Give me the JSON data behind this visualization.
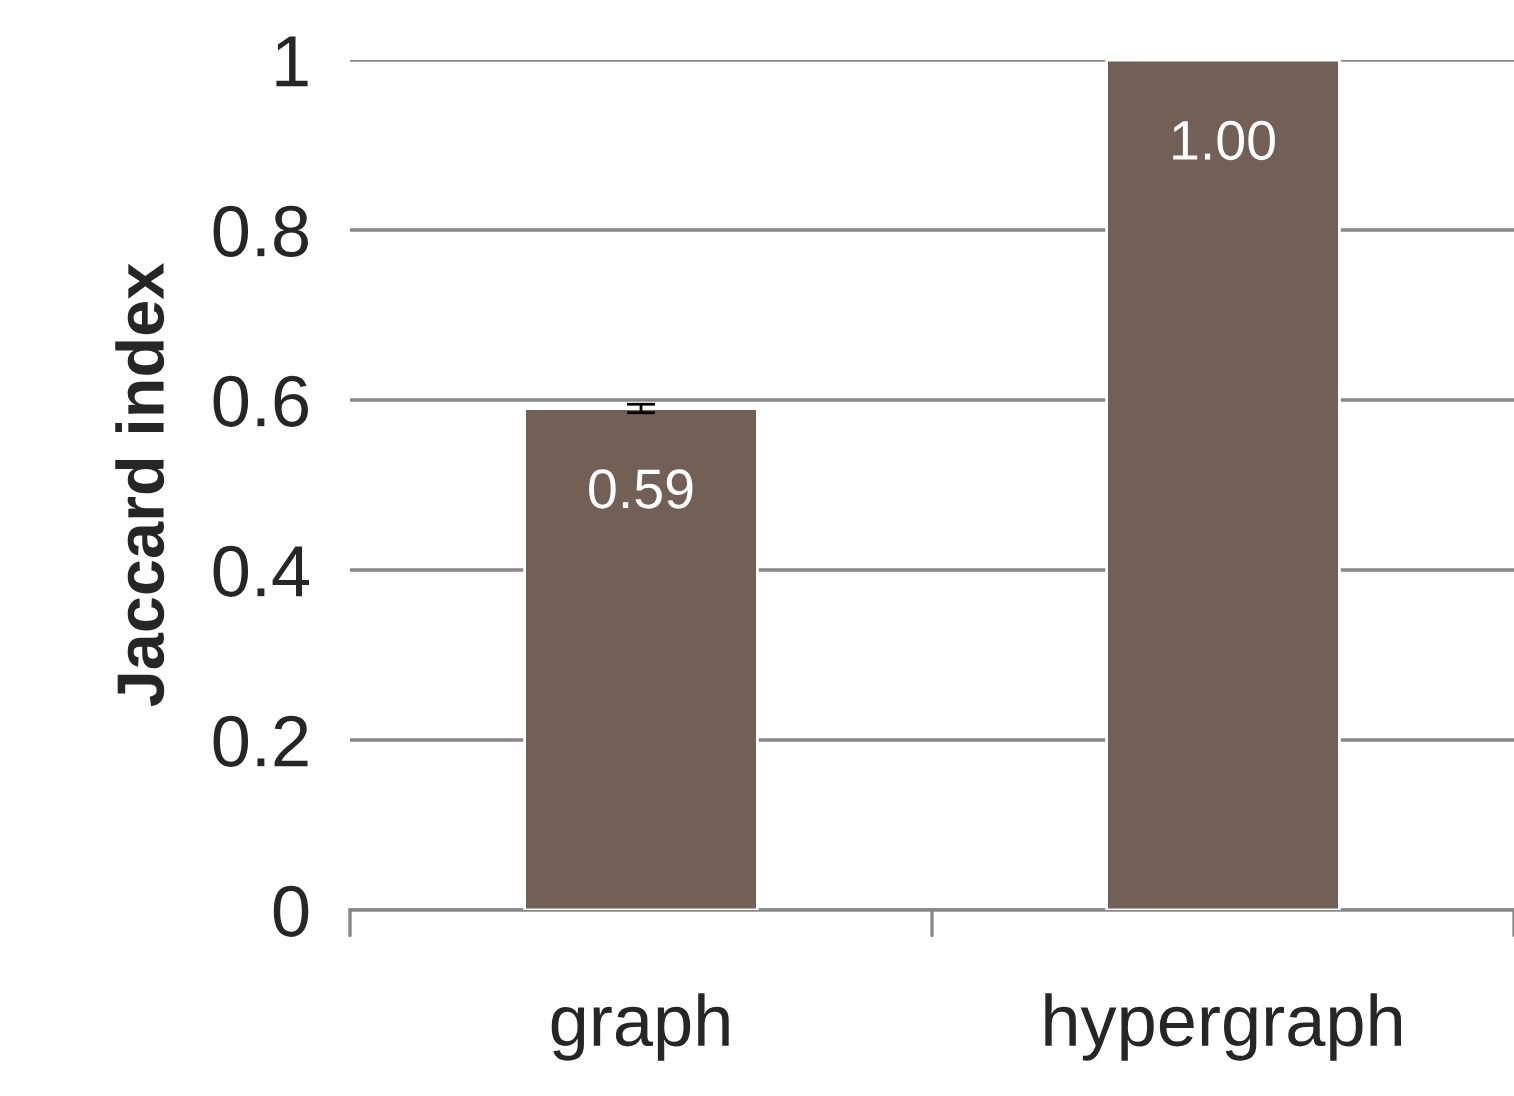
{
  "chart_data": {
    "type": "bar",
    "ylabel": "Jaccard index",
    "categories": [
      "graph",
      "hypergraph"
    ],
    "values": [
      0.59,
      1.0
    ],
    "errors": [
      0.005,
      null
    ],
    "color": "#725f55",
    "value_labels": [
      "0.59",
      "1.00"
    ],
    "ylim": [
      0,
      1
    ],
    "yticks": [
      0,
      0.2,
      0.4,
      0.6,
      0.8,
      1
    ],
    "grid": "y",
    "legend": false
  }
}
